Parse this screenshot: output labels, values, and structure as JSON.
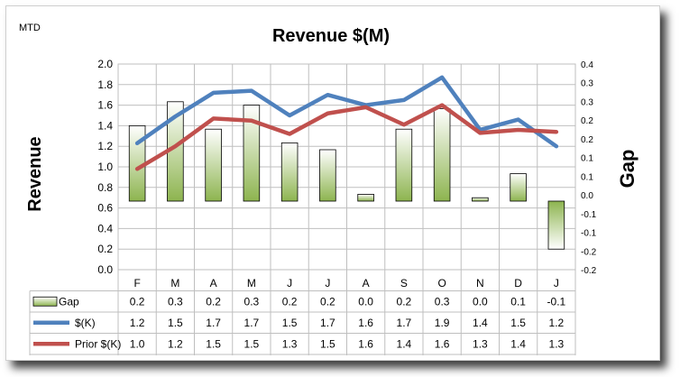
{
  "corner_label": "MTD",
  "chart_data": {
    "type": "bar+line",
    "title": "Revenue $(M)",
    "ylabel": "Revenue",
    "y2label": "Gap",
    "categories": [
      "F",
      "M",
      "A",
      "M",
      "J",
      "J",
      "A",
      "S",
      "O",
      "N",
      "D",
      "J"
    ],
    "ylim": [
      0.0,
      2.0
    ],
    "y_ticks": [
      "0.0",
      "0.2",
      "0.4",
      "0.6",
      "0.8",
      "1.0",
      "1.2",
      "1.4",
      "1.6",
      "1.8",
      "2.0"
    ],
    "y2lim": [
      -0.2,
      0.4
    ],
    "y2_ticks": [
      "-0.2",
      "-0.2",
      "-0.1",
      "-0.1",
      "0.0",
      "0.1",
      "0.1",
      "0.2",
      "0.2",
      "0.3",
      "0.3",
      "0.4"
    ],
    "grid": true,
    "legend": "data-table",
    "series": [
      {
        "name": "Gap",
        "kind": "bar",
        "axis": "secondary",
        "color": "#9bbb59",
        "values": [
          0.2,
          0.3,
          0.2,
          0.3,
          0.2,
          0.2,
          0.0,
          0.2,
          0.3,
          0.0,
          0.1,
          -0.1
        ],
        "plot_values": [
          0.22,
          0.29,
          0.21,
          0.28,
          0.17,
          0.15,
          0.02,
          0.21,
          0.27,
          0.01,
          0.08,
          -0.14
        ],
        "table_values": [
          "0.2",
          "0.3",
          "0.2",
          "0.3",
          "0.2",
          "0.2",
          "0.0",
          "0.2",
          "0.3",
          "0.0",
          "0.1",
          "-0.1"
        ]
      },
      {
        "name": "$(K)",
        "kind": "line",
        "axis": "primary",
        "color": "#4f81bd",
        "values": [
          1.23,
          1.49,
          1.72,
          1.74,
          1.5,
          1.7,
          1.6,
          1.65,
          1.87,
          1.36,
          1.46,
          1.2
        ],
        "table_values": [
          "1.2",
          "1.5",
          "1.7",
          "1.7",
          "1.5",
          "1.7",
          "1.6",
          "1.7",
          "1.9",
          "1.4",
          "1.5",
          "1.2"
        ]
      },
      {
        "name": "Prior $(K)",
        "kind": "line",
        "axis": "primary",
        "color": "#c0504d",
        "values": [
          0.98,
          1.2,
          1.47,
          1.45,
          1.32,
          1.52,
          1.58,
          1.41,
          1.6,
          1.33,
          1.36,
          1.34
        ],
        "table_values": [
          "1.0",
          "1.2",
          "1.5",
          "1.5",
          "1.3",
          "1.5",
          "1.6",
          "1.4",
          "1.6",
          "1.3",
          "1.4",
          "1.3"
        ]
      }
    ]
  }
}
